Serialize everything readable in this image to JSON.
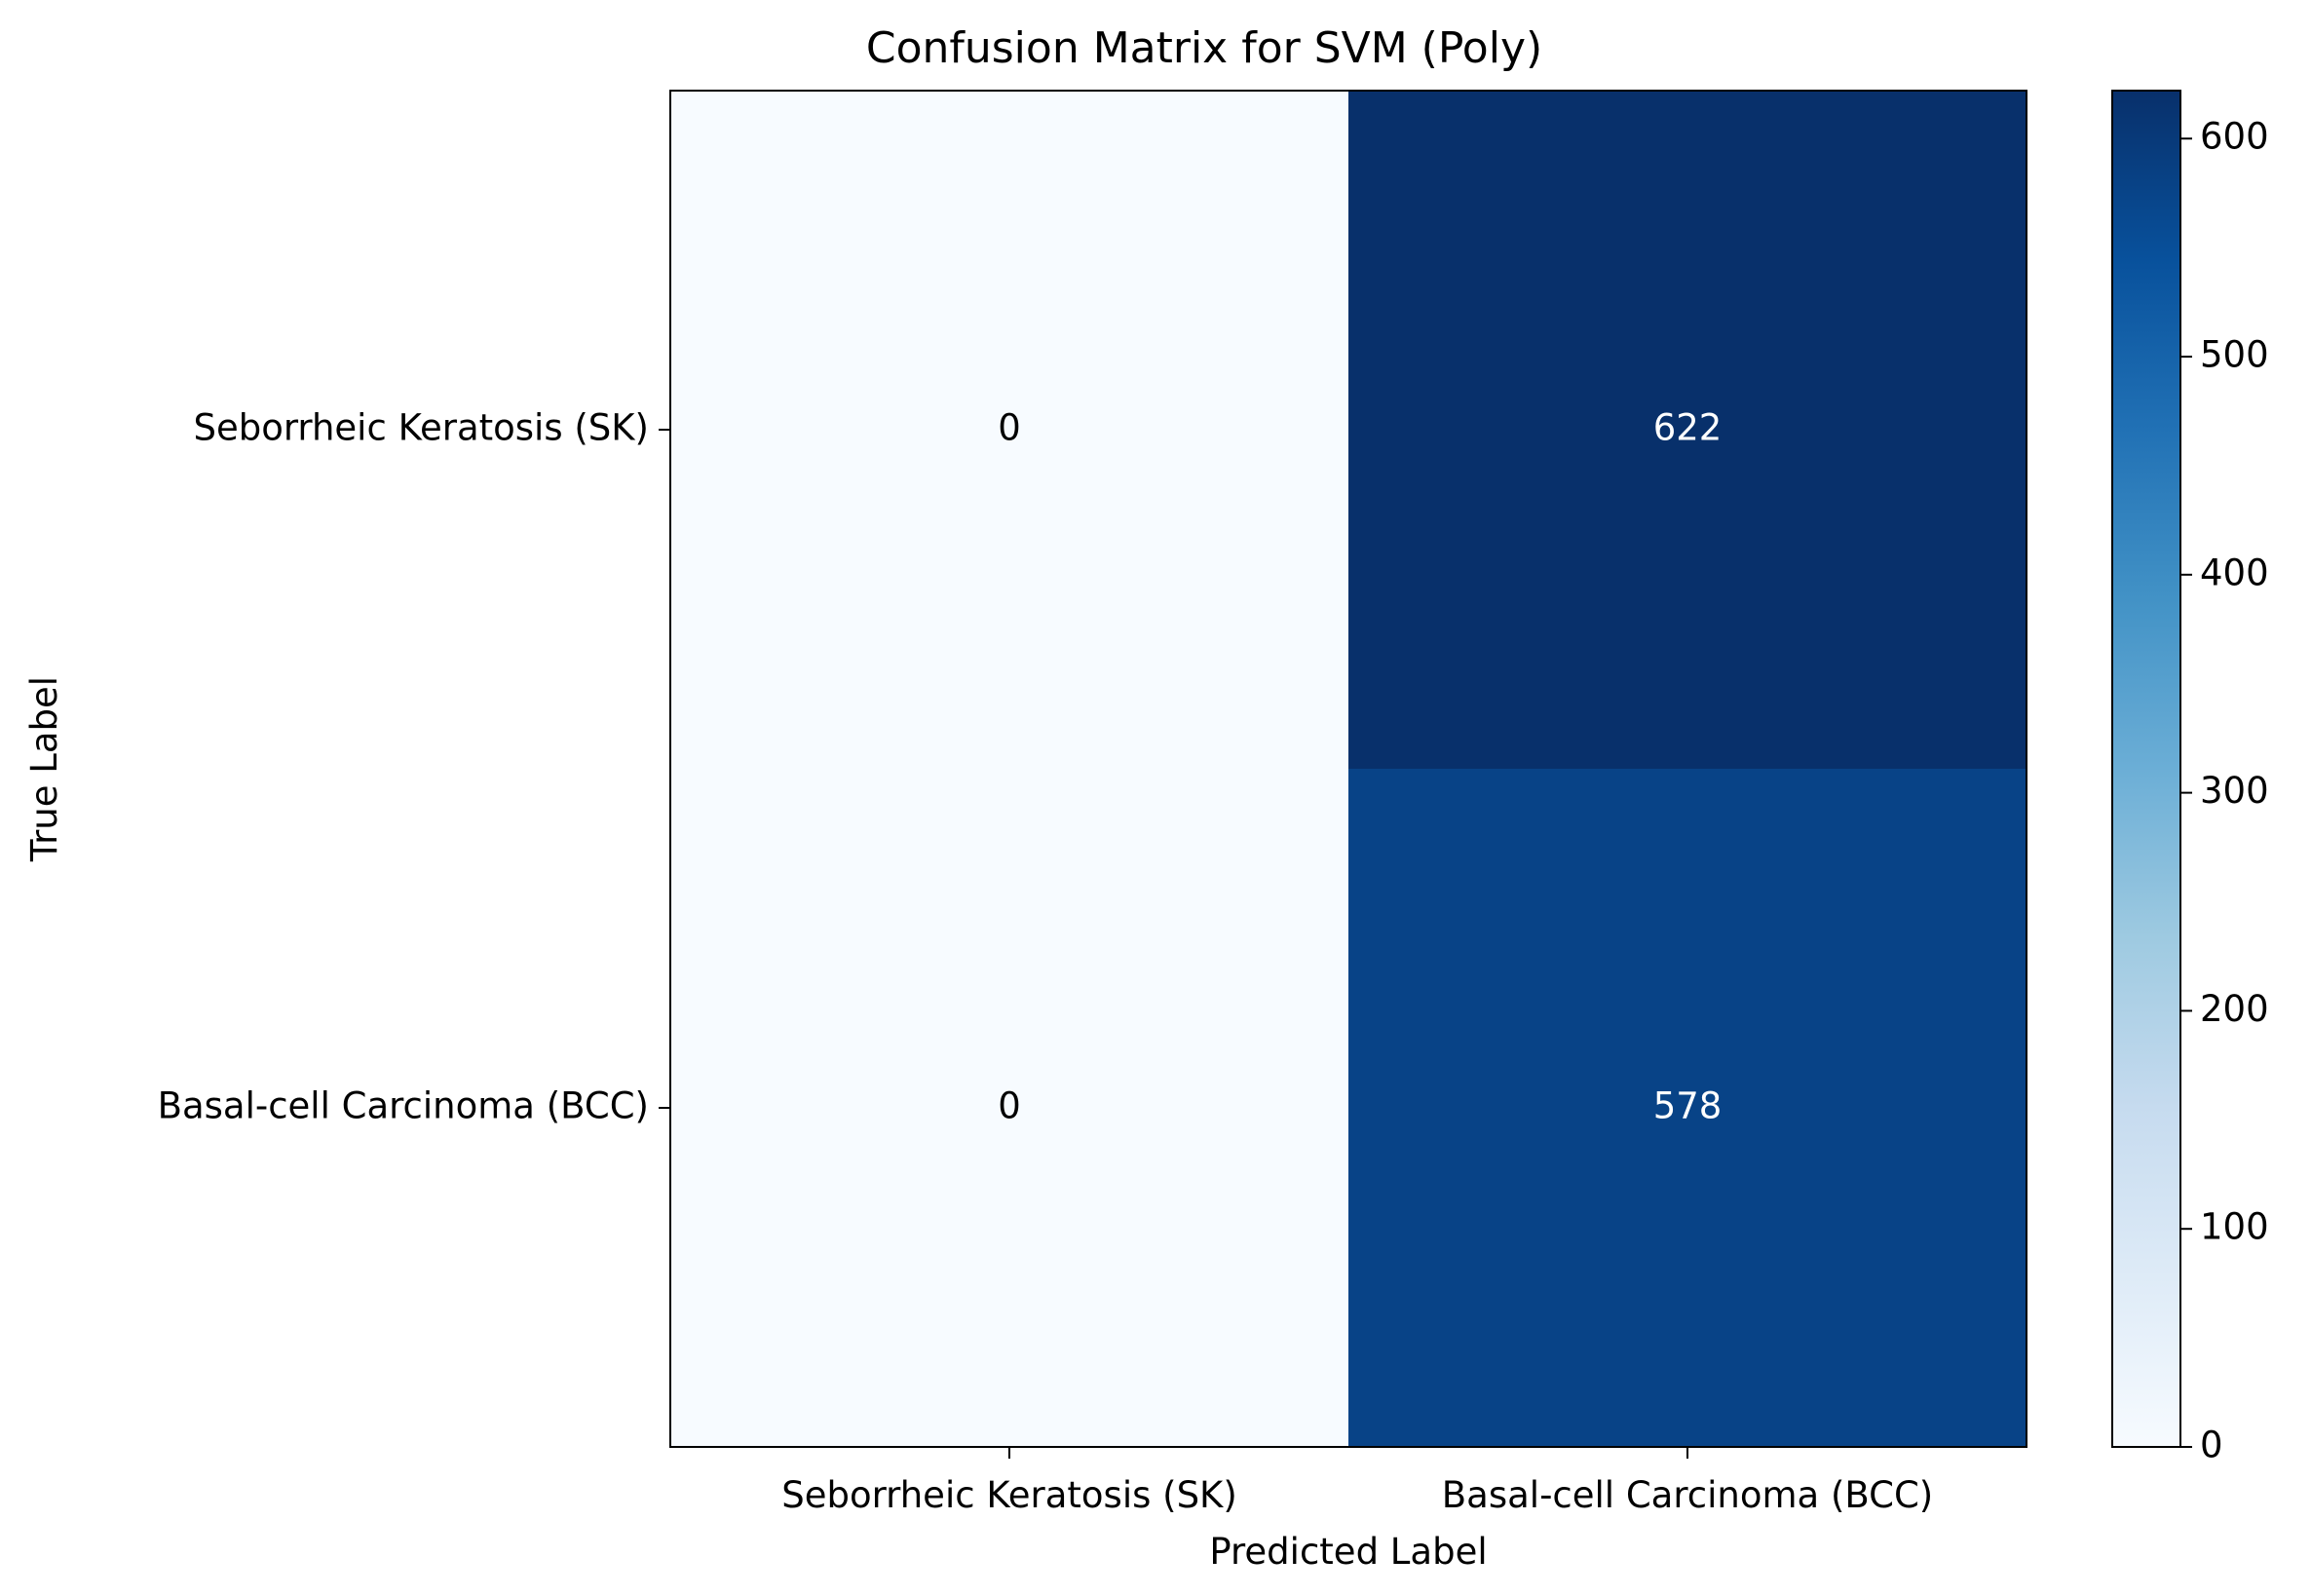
{
  "chart_data": {
    "type": "heatmap",
    "title": "Confusion Matrix for SVM (Poly)",
    "xlabel": "Predicted Label",
    "ylabel": "True Label",
    "x_categories": [
      "Seborrheic Keratosis (SK)",
      "Basal-cell Carcinoma (BCC)"
    ],
    "y_categories": [
      "Seborrheic Keratosis (SK)",
      "Basal-cell Carcinoma (BCC)"
    ],
    "values": [
      [
        0,
        622
      ],
      [
        0,
        578
      ]
    ],
    "colormap": "Blues",
    "colorbar": {
      "min": 0,
      "max": 622,
      "ticks": [
        0,
        100,
        200,
        300,
        400,
        500,
        600
      ]
    },
    "grid": false
  }
}
